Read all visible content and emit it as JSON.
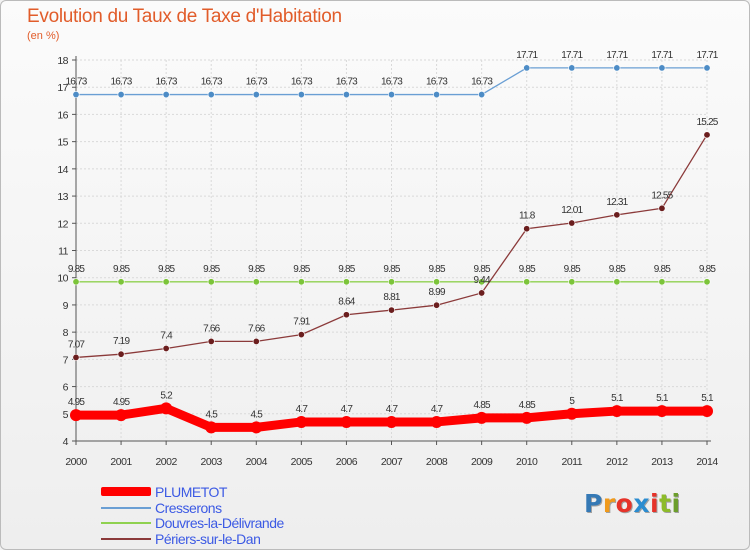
{
  "title": "Evolution du Taux de Taxe d'Habitation",
  "unit": "(en %)",
  "logo": {
    "text": "Proxiti",
    "letters": [
      "P",
      "r",
      "o",
      "x",
      "i",
      "t",
      "i"
    ],
    "colors": [
      "#3579b5",
      "#f09a1c",
      "#e6332a",
      "#2b8cd0",
      "#e6332a",
      "#8dbb2a",
      "#6c9e2c"
    ]
  },
  "chart_data": {
    "type": "line",
    "title": "Evolution du Taux de Taxe d'Habitation",
    "ylabel": "(en %)",
    "xlabel": "",
    "ylim": [
      4,
      18
    ],
    "yticks": [
      4,
      5,
      6,
      7,
      8,
      9,
      10,
      11,
      12,
      13,
      14,
      15,
      16,
      17,
      18
    ],
    "categories": [
      "2000",
      "2001",
      "2002",
      "2003",
      "2004",
      "2005",
      "2006",
      "2007",
      "2008",
      "2009",
      "2010",
      "2011",
      "2012",
      "2013",
      "2014"
    ],
    "grid": true,
    "legend_position": "bottom-left",
    "series": [
      {
        "name": "PLUMETOT",
        "color": "#ff0000",
        "thick": true,
        "values": [
          4.95,
          4.95,
          5.2,
          4.5,
          4.5,
          4.7,
          4.7,
          4.7,
          4.7,
          4.85,
          4.85,
          5,
          5.1,
          5.1,
          5.1
        ],
        "labels": [
          "4.95",
          "4.95",
          "5.2",
          "4.5",
          "4.5",
          "4.7",
          "4.7",
          "4.7",
          "4.7",
          "4.85",
          "4.85",
          "5",
          "5.1",
          "5.1",
          "5.1"
        ]
      },
      {
        "name": "Cresserons",
        "color": "#6a9fd4",
        "marker": "#4d8cc6",
        "values": [
          16.73,
          16.73,
          16.73,
          16.73,
          16.73,
          16.73,
          16.73,
          16.73,
          16.73,
          16.73,
          17.71,
          17.71,
          17.71,
          17.71,
          17.71
        ],
        "labels": [
          "16.73",
          "16.73",
          "16.73",
          "16.73",
          "16.73",
          "16.73",
          "16.73",
          "16.73",
          "16.73",
          "16.73",
          "17.71",
          "17.71",
          "17.71",
          "17.71",
          "17.71"
        ]
      },
      {
        "name": "Douvres-la-Délivrande",
        "color": "#8fd14f",
        "marker": "#7cc43a",
        "values": [
          9.85,
          9.85,
          9.85,
          9.85,
          9.85,
          9.85,
          9.85,
          9.85,
          9.85,
          9.85,
          9.85,
          9.85,
          9.85,
          9.85,
          9.85
        ],
        "labels": [
          "9.85",
          "9.85",
          "9.85",
          "9.85",
          "9.85",
          "9.85",
          "9.85",
          "9.85",
          "9.85",
          "9.85",
          "9.85",
          "9.85",
          "9.85",
          "9.85",
          "9.85"
        ]
      },
      {
        "name": "Périers-sur-le-Dan",
        "color": "#8b3a3a",
        "marker": "#6b1e1e",
        "values": [
          7.07,
          7.19,
          7.4,
          7.66,
          7.66,
          7.91,
          8.64,
          8.81,
          8.99,
          9.44,
          11.8,
          12.01,
          12.31,
          12.55,
          15.25
        ],
        "labels": [
          "7.07",
          "7.19",
          "7.4",
          "7.66",
          "7.66",
          "7.91",
          "8.64",
          "8.81",
          "8.99",
          "9.44",
          "11.8",
          "12.01",
          "12.31",
          "12.55",
          "15.25"
        ]
      }
    ]
  }
}
